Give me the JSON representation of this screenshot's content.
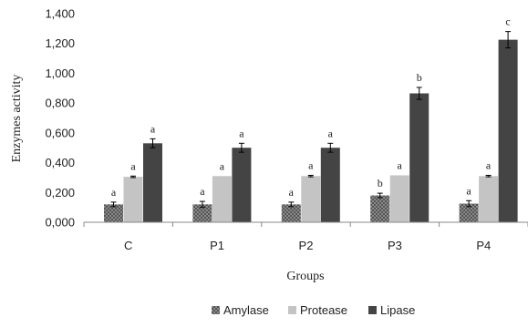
{
  "chart_data": {
    "type": "bar",
    "title": "",
    "xlabel": "Groups",
    "ylabel": "Enzymes activity",
    "ylim": [
      0,
      1.4
    ],
    "yticks": [
      0,
      0.2,
      0.4,
      0.6,
      0.8,
      1.0,
      1.2,
      1.4
    ],
    "ytick_labels": [
      "0,000",
      "0,200",
      "0,400",
      "0,600",
      "0,800",
      "1,000",
      "1,200",
      "1,400"
    ],
    "categories": [
      "C",
      "P1",
      "P2",
      "P3",
      "P4"
    ],
    "series": [
      {
        "name": "Amylase",
        "values": [
          0.12,
          0.12,
          0.12,
          0.18,
          0.125
        ],
        "errors": [
          0.015,
          0.02,
          0.015,
          0.015,
          0.02
        ],
        "sig_labels": [
          "a",
          "a",
          "a",
          "b",
          "a"
        ],
        "color": "#555555",
        "pattern": "checker"
      },
      {
        "name": "Protease",
        "values": [
          0.305,
          0.31,
          0.31,
          0.315,
          0.31
        ],
        "errors": [
          0.005,
          0.0,
          0.005,
          0.0,
          0.005
        ],
        "sig_labels": [
          "a",
          "a",
          "a",
          "a",
          "a"
        ],
        "color": "#c4c4c4",
        "pattern": "solid"
      },
      {
        "name": "Lipase",
        "values": [
          0.53,
          0.5,
          0.5,
          0.865,
          1.225
        ],
        "errors": [
          0.03,
          0.03,
          0.03,
          0.04,
          0.055
        ],
        "sig_labels": [
          "a",
          "a",
          "a",
          "b",
          "c"
        ],
        "color": "#444444",
        "pattern": "solid"
      }
    ],
    "grid": false,
    "legend_position": "bottom"
  }
}
